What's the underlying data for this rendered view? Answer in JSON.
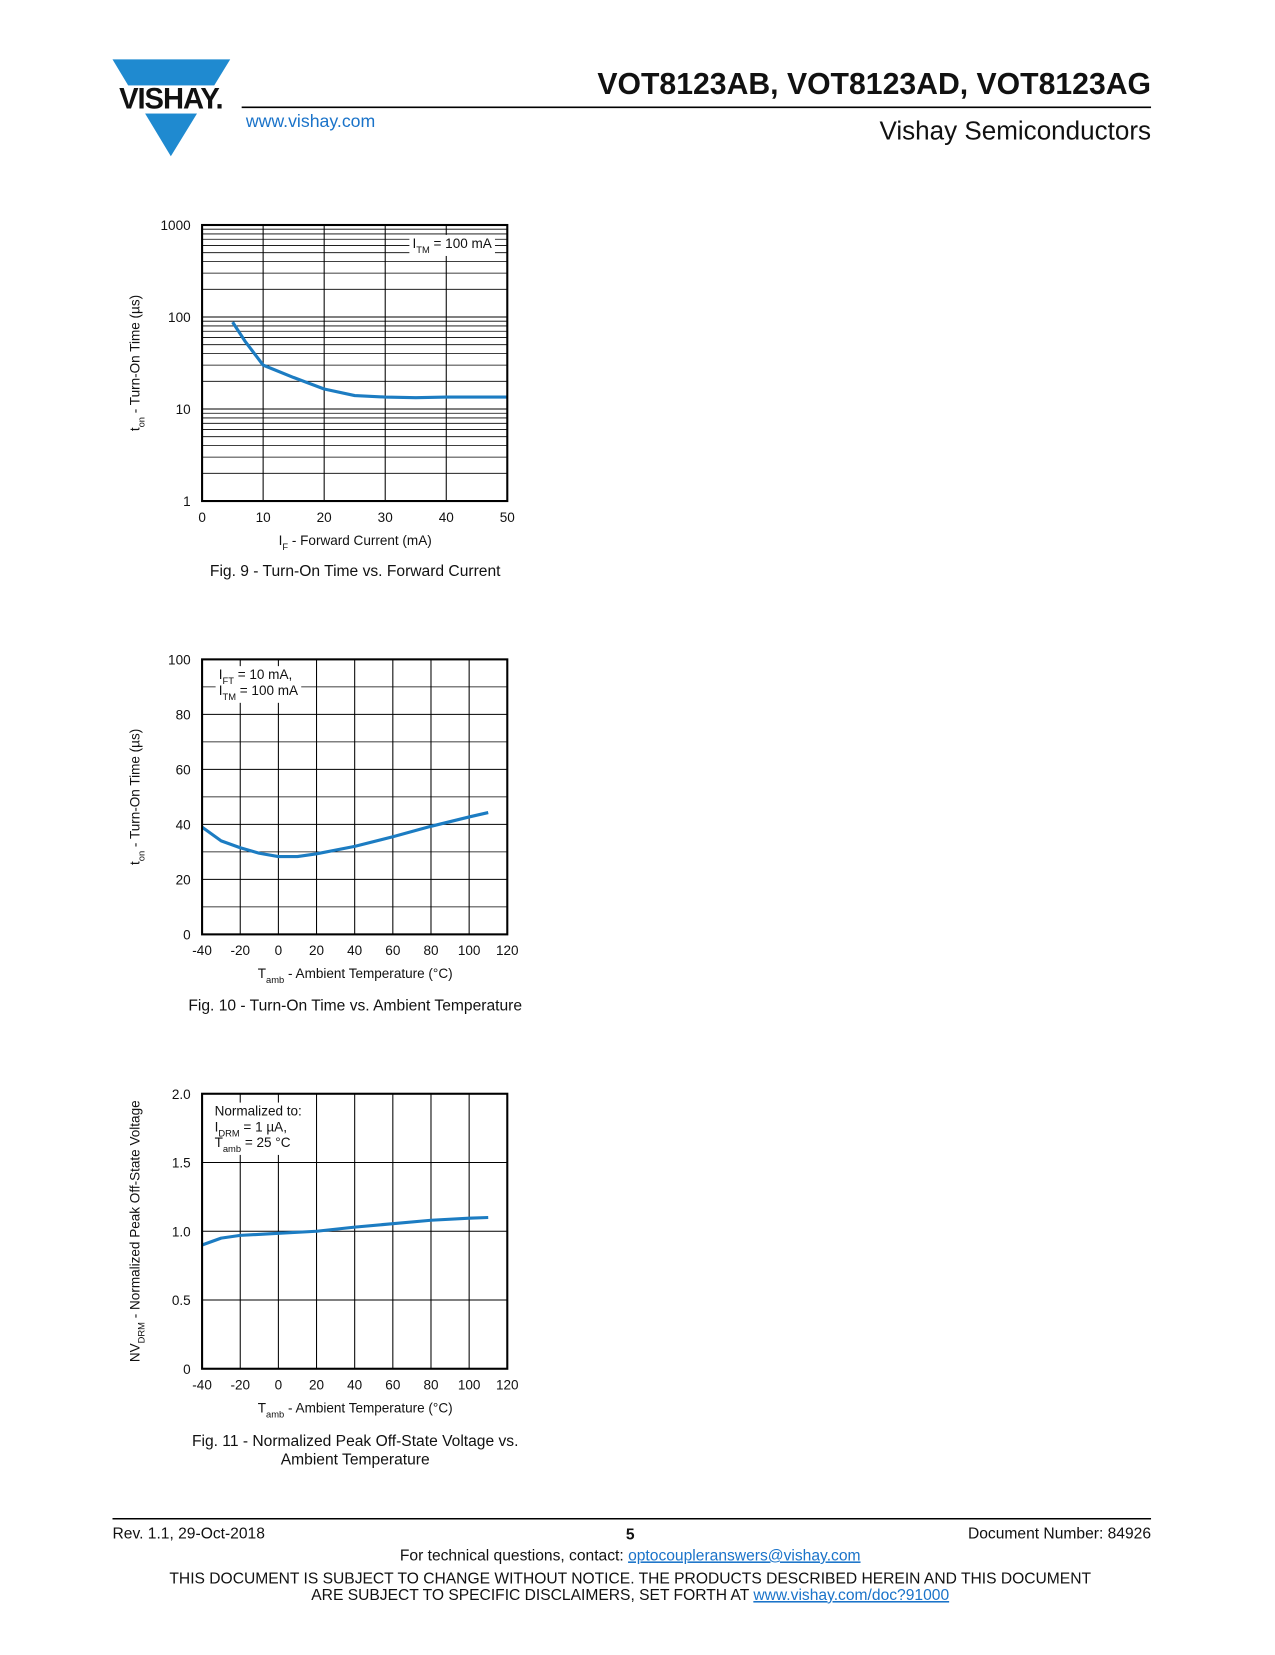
{
  "header": {
    "logo": "VISHAY.",
    "title": "VOT8123AB, VOT8123AD, VOT8123AG",
    "url": "www.vishay.com",
    "subtitle": "Vishay Semiconductors"
  },
  "chart_data": [
    {
      "type": "line",
      "log_y": true,
      "grid": true,
      "color": "#1c7cc2",
      "x": [
        5,
        7,
        10,
        15,
        20,
        25,
        30,
        35,
        40,
        50
      ],
      "values": [
        88,
        55,
        30,
        22,
        16.5,
        14,
        13.5,
        13.3,
        13.5,
        13.5
      ],
      "xlim": [
        0,
        50
      ],
      "xticks": [
        0,
        10,
        20,
        30,
        40,
        50
      ],
      "ylim": [
        1,
        1000
      ],
      "yticks": [
        1,
        10,
        100,
        1000
      ],
      "yminor": [
        2,
        3,
        4,
        5,
        6,
        7,
        8,
        9,
        20,
        30,
        40,
        50,
        60,
        70,
        80,
        90,
        200,
        300,
        400,
        500,
        600,
        700,
        800,
        900
      ],
      "ylabel": [
        {
          "text": "t"
        },
        {
          "sub": "on"
        },
        {
          "text": " - Turn-On Time (µs)"
        }
      ],
      "xlabel": [
        {
          "text": "I"
        },
        {
          "sub": "F"
        },
        {
          "text": " - Forward Current (mA)"
        }
      ],
      "annotation": [
        [
          {
            "text": "I"
          },
          {
            "sub": "TM"
          },
          {
            "text": " = 100 mA"
          }
        ]
      ],
      "caption": [
        "Fig. 9 - Turn-On Time vs. Forward Current"
      ]
    },
    {
      "type": "line",
      "log_y": false,
      "grid": true,
      "color": "#1c7cc2",
      "x": [
        -40,
        -30,
        -20,
        -10,
        0,
        10,
        20,
        40,
        60,
        80,
        100,
        110
      ],
      "values": [
        39,
        34,
        31.5,
        29.5,
        28.3,
        28.3,
        29.3,
        32,
        35.5,
        39.3,
        42.7,
        44.3
      ],
      "xlim": [
        -40,
        120
      ],
      "xticks": [
        -40,
        -20,
        0,
        20,
        40,
        60,
        80,
        100,
        120
      ],
      "ylim": [
        0,
        100
      ],
      "yticks": [
        0,
        20,
        40,
        60,
        80,
        100
      ],
      "yminor": [
        10,
        30,
        50,
        70,
        90
      ],
      "ylabel": [
        {
          "text": "t"
        },
        {
          "sub": "on"
        },
        {
          "text": " - Turn-On Time (µs)"
        }
      ],
      "xlabel": [
        {
          "text": "T"
        },
        {
          "sub": "amb"
        },
        {
          "text": " - Ambient Temperature (°C)"
        }
      ],
      "annotation": [
        [
          {
            "text": "I"
          },
          {
            "sub": "FT"
          },
          {
            "text": " = 10 mA,"
          }
        ],
        [
          {
            "text": "I"
          },
          {
            "sub": "TM"
          },
          {
            "text": " = 100 mA"
          }
        ]
      ],
      "caption": [
        "Fig. 10 - Turn-On Time vs. Ambient Temperature"
      ]
    },
    {
      "type": "line",
      "log_y": false,
      "grid": true,
      "color": "#1c7cc2",
      "x": [
        -40,
        -30,
        -20,
        0,
        20,
        40,
        60,
        80,
        100,
        110
      ],
      "values": [
        0.9,
        0.95,
        0.97,
        0.985,
        1.0,
        1.03,
        1.055,
        1.08,
        1.095,
        1.1
      ],
      "xlim": [
        -40,
        120
      ],
      "xticks": [
        -40,
        -20,
        0,
        20,
        40,
        60,
        80,
        100,
        120
      ],
      "ylim": [
        0,
        2
      ],
      "yticks": [
        0,
        0.5,
        {
          "value": 1,
          "label": "1.0"
        },
        1.5,
        {
          "value": 2,
          "label": "2.0"
        }
      ],
      "yminor": [],
      "ylabel": [
        {
          "text": "NV"
        },
        {
          "sub": "DRM"
        },
        {
          "text": " - Normalized Peak Off-State Voltage"
        }
      ],
      "xlabel": [
        {
          "text": "T"
        },
        {
          "sub": "amb"
        },
        {
          "text": " - Ambient Temperature (°C)"
        }
      ],
      "annotation": [
        [
          {
            "text": "Normalized to:"
          }
        ],
        [
          {
            "text": "I"
          },
          {
            "sub": "DRM"
          },
          {
            "text": " = 1 µA,"
          }
        ],
        [
          {
            "text": "T"
          },
          {
            "sub": "amb"
          },
          {
            "text": " = 25 °C"
          }
        ]
      ],
      "caption": [
        "Fig. 11 - Normalized Peak Off-State Voltage vs.",
        "Ambient Temperature"
      ]
    }
  ],
  "footer": {
    "revision": "Rev. 1.1, 29-Oct-2018",
    "page": "5",
    "doc_number": "Document Number: 84926",
    "contact": "For technical questions, contact: ",
    "email": "optocoupleranswers@vishay.com",
    "disclaimer_1": "THIS DOCUMENT IS SUBJECT TO CHANGE WITHOUT NOTICE. THE PRODUCTS DESCRIBED HEREIN AND THIS DOCUMENT",
    "disclaimer_2": "ARE SUBJECT TO SPECIFIC DISCLAIMERS, SET FORTH AT ",
    "disclaimer_link": "www.vishay.com/doc?91000"
  }
}
